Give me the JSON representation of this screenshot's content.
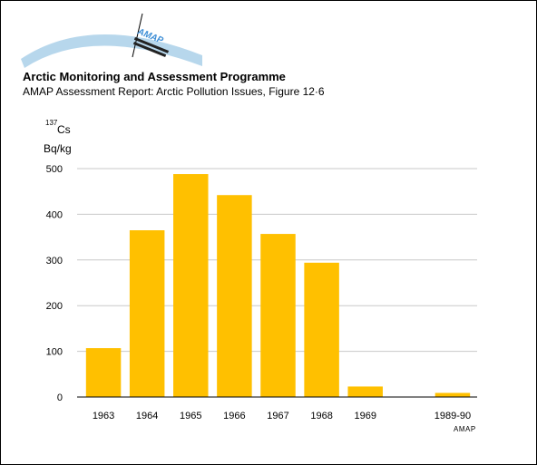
{
  "header": {
    "title": "Arctic Monitoring and Assessment Programme",
    "subtitle": "AMAP Assessment Report: Arctic Pollution Issues, Figure 12·6",
    "logo_text": "AMAP"
  },
  "credit": "AMAP",
  "colors": {
    "bar": "#FFC000",
    "grid": "#c8c8c8",
    "arc": "#b7d7ec",
    "logo_blue": "#3f8fd6"
  },
  "chart_data": {
    "type": "bar",
    "categories": [
      "1963",
      "1964",
      "1965",
      "1966",
      "1967",
      "1968",
      "1969",
      "",
      "1989-90"
    ],
    "values": [
      107,
      365,
      488,
      442,
      357,
      294,
      23,
      null,
      9
    ],
    "ylabel_sup": "137",
    "ylabel_isotope": "Cs",
    "ylabel_unit": "Bq/kg",
    "ylim": [
      0,
      500
    ],
    "yticks": [
      0,
      100,
      200,
      300,
      400,
      500
    ],
    "grid": true
  }
}
